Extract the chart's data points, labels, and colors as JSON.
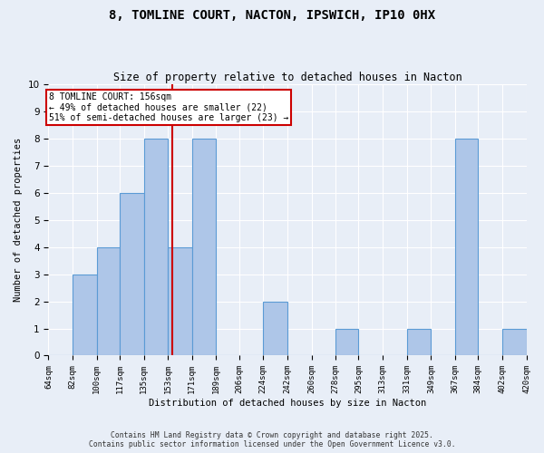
{
  "title_line1": "8, TOMLINE COURT, NACTON, IPSWICH, IP10 0HX",
  "title_line2": "Size of property relative to detached houses in Nacton",
  "xlabel": "Distribution of detached houses by size in Nacton",
  "ylabel": "Number of detached properties",
  "bin_edges": [
    64,
    82,
    100,
    117,
    135,
    153,
    171,
    189,
    206,
    224,
    242,
    260,
    278,
    295,
    313,
    331,
    349,
    367,
    384,
    402,
    420
  ],
  "bar_heights": [
    0,
    3,
    4,
    6,
    8,
    4,
    8,
    0,
    0,
    2,
    0,
    0,
    1,
    0,
    0,
    1,
    0,
    8,
    0,
    1
  ],
  "bar_color": "#aec6e8",
  "bar_edge_color": "#5b9bd5",
  "property_value": 156,
  "property_label": "8 TOMLINE COURT: 156sqm",
  "annotation_line1": "← 49% of detached houses are smaller (22)",
  "annotation_line2": "51% of semi-detached houses are larger (23) →",
  "vline_color": "#cc0000",
  "annotation_box_color": "#cc0000",
  "ylim": [
    0,
    10
  ],
  "yticks": [
    0,
    1,
    2,
    3,
    4,
    5,
    6,
    7,
    8,
    9,
    10
  ],
  "footer_line1": "Contains HM Land Registry data © Crown copyright and database right 2025.",
  "footer_line2": "Contains public sector information licensed under the Open Government Licence v3.0.",
  "bg_color": "#e8eef7",
  "plot_bg_color": "#e8eef7",
  "grid_color": "#ffffff"
}
